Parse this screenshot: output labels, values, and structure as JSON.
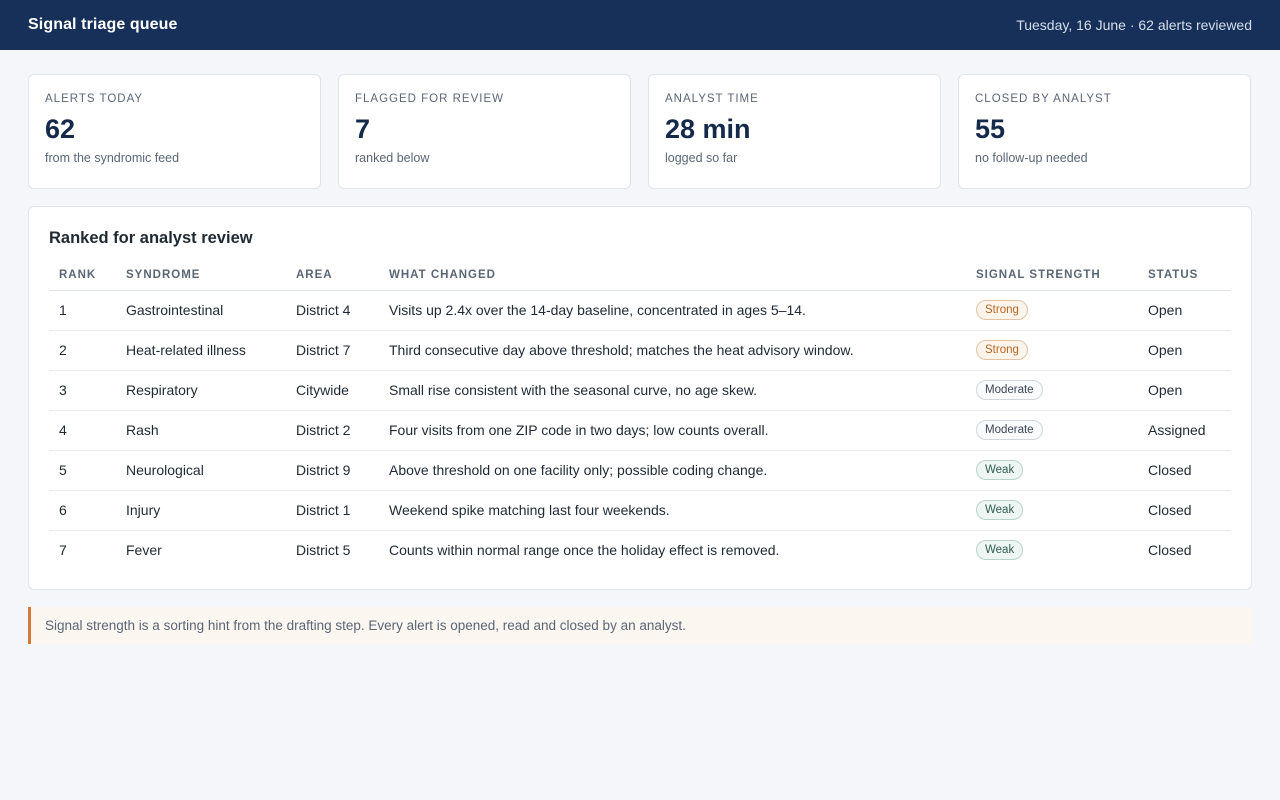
{
  "header": {
    "title": "Signal triage queue",
    "meta": "Tuesday, 16 June · 62 alerts reviewed"
  },
  "stats": [
    {
      "label": "ALERTS TODAY",
      "value": "62",
      "sub": "from the syndromic feed"
    },
    {
      "label": "FLAGGED FOR REVIEW",
      "value": "7",
      "sub": "ranked below"
    },
    {
      "label": "ANALYST TIME",
      "value": "28 min",
      "sub": "logged so far"
    },
    {
      "label": "CLOSED BY ANALYST",
      "value": "55",
      "sub": "no follow-up needed"
    }
  ],
  "panel": {
    "title": "Ranked for analyst review",
    "columns": [
      "RANK",
      "SYNDROME",
      "AREA",
      "WHAT CHANGED",
      "SIGNAL STRENGTH",
      "STATUS"
    ],
    "rows": [
      {
        "rank": "1",
        "syndrome": "Gastrointestinal",
        "area": "District 4",
        "change": "Visits up 2.4x over the 14-day baseline, concentrated in ages 5–14.",
        "strength": "Strong",
        "status": "Open"
      },
      {
        "rank": "2",
        "syndrome": "Heat-related illness",
        "area": "District 7",
        "change": "Third consecutive day above threshold; matches the heat advisory window.",
        "strength": "Strong",
        "status": "Open"
      },
      {
        "rank": "3",
        "syndrome": "Respiratory",
        "area": "Citywide",
        "change": "Small rise consistent with the seasonal curve, no age skew.",
        "strength": "Moderate",
        "status": "Open"
      },
      {
        "rank": "4",
        "syndrome": "Rash",
        "area": "District 2",
        "change": "Four visits from one ZIP code in two days; low counts overall.",
        "strength": "Moderate",
        "status": "Assigned"
      },
      {
        "rank": "5",
        "syndrome": "Neurological",
        "area": "District 9",
        "change": "Above threshold on one facility only; possible coding change.",
        "strength": "Weak",
        "status": "Closed"
      },
      {
        "rank": "6",
        "syndrome": "Injury",
        "area": "District 1",
        "change": "Weekend spike matching last four weekends.",
        "strength": "Weak",
        "status": "Closed"
      },
      {
        "rank": "7",
        "syndrome": "Fever",
        "area": "District 5",
        "change": "Counts within normal range once the holiday effect is removed.",
        "strength": "Weak",
        "status": "Closed"
      }
    ]
  },
  "note": "Signal strength is a sorting hint from the drafting step. Every alert is opened, read and closed by an analyst.",
  "colors": {
    "header_bg": "#163059",
    "strong": "#b8651f",
    "moderate": "#3a4655",
    "weak": "#2f5b4f",
    "note_accent": "#d67a35"
  }
}
